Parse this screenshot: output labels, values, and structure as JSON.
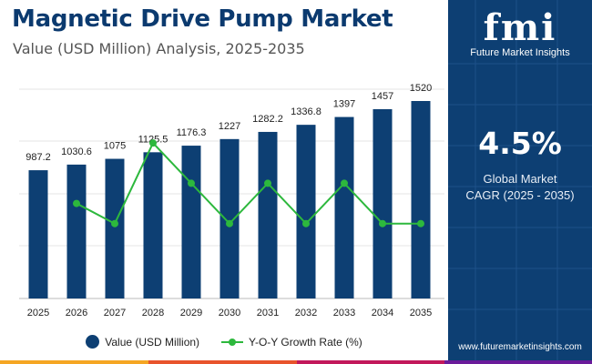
{
  "header": {
    "title": "Magnetic Drive Pump Market",
    "subtitle": "Value (USD Million) Analysis, 2025-2035"
  },
  "sidebar": {
    "logo_text": "fmi",
    "logo_subtitle": "Future Market Insights",
    "cagr_value": "4.5%",
    "cagr_label_line1": "Global Market",
    "cagr_label_line2": "CAGR (2025 - 2035)",
    "url": "www.futuremarketinsights.com"
  },
  "legend": {
    "bar_label": "Value (USD Million)",
    "line_label": "Y-O-Y Growth Rate (%)"
  },
  "colors": {
    "bar": "#0d3f73",
    "line": "#2db83d",
    "title": "#0b3a6f",
    "sidebar": "#0d3f73",
    "strip": [
      "#f5a623",
      "#e8542c",
      "#c2185b",
      "#6a1b9a"
    ]
  },
  "chart_data": {
    "type": "bar",
    "title": "Magnetic Drive Pump Market",
    "subtitle": "Value (USD Million) Analysis, 2025-2035",
    "categories": [
      "2025",
      "2026",
      "2027",
      "2028",
      "2029",
      "2030",
      "2031",
      "2032",
      "2033",
      "2034",
      "2035"
    ],
    "series": [
      {
        "name": "Value (USD Million)",
        "type": "bar",
        "values": [
          987.2,
          1030.6,
          1075,
          1125.5,
          1176.3,
          1227,
          1282.2,
          1336.8,
          1397,
          1457,
          1520
        ],
        "labels": [
          "987.2",
          "1030.6",
          "1075",
          "1125.5",
          "1176.3",
          "1227",
          "1282.2",
          "1336.8",
          "1397",
          "1457",
          "1520"
        ]
      },
      {
        "name": "Y-O-Y Growth Rate (%)",
        "type": "line",
        "x": [
          "2026",
          "2027",
          "2028",
          "2029",
          "2030",
          "2031",
          "2032",
          "2033",
          "2034",
          "2035"
        ],
        "values": [
          4.4,
          4.3,
          4.7,
          4.5,
          4.3,
          4.5,
          4.3,
          4.5,
          4.3,
          4.3
        ]
      }
    ],
    "ylim": [
      0,
      1520
    ],
    "line_ylim": [
      4.1,
      4.8
    ],
    "grid": true,
    "legend_position": "bottom"
  }
}
